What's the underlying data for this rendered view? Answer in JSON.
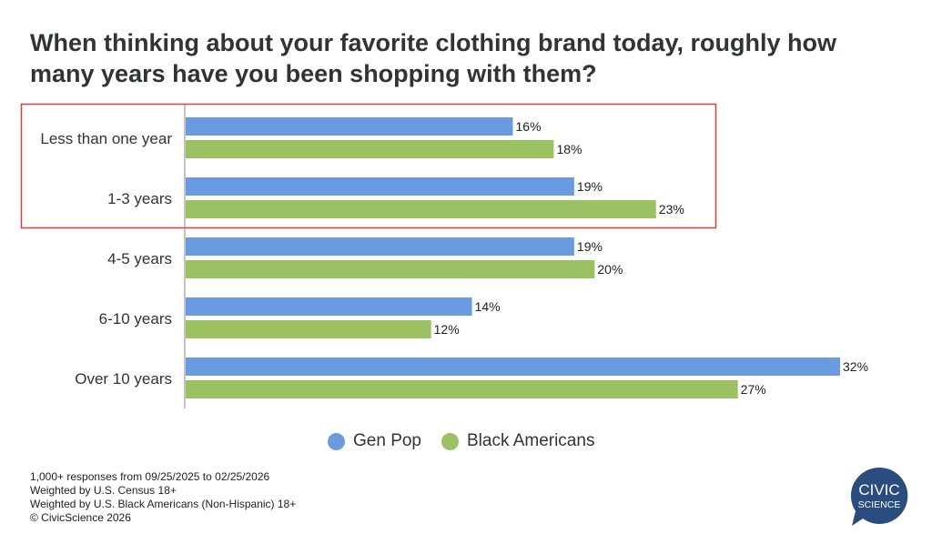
{
  "chart_data": {
    "type": "bar",
    "orientation": "horizontal",
    "title": "When thinking about your favorite clothing brand today, roughly how many years have you been shopping with them?",
    "categories": [
      "Less than one year",
      "1-3 years",
      "4-5 years",
      "6-10 years",
      "Over 10 years"
    ],
    "series": [
      {
        "name": "Gen Pop",
        "color": "#6a9ae0",
        "values": [
          16,
          19,
          19,
          14,
          32
        ]
      },
      {
        "name": "Black Americans",
        "color": "#9bc163",
        "values": [
          18,
          23,
          20,
          12,
          27
        ]
      }
    ],
    "value_suffix": "%",
    "xlim": [
      0,
      32
    ],
    "legend": "bottom-center",
    "highlight": {
      "categories": [
        "Less than one year",
        "1-3 years"
      ],
      "color": "#e03c3c"
    }
  },
  "notes": [
    "1,000+ responses from 09/25/2025 to 02/25/2026",
    "Weighted by U.S. Census 18+",
    "Weighted by U.S. Black Americans (Non-Hispanic) 18+",
    "© CivicScience 2026"
  ],
  "logo": {
    "line1": "CIVIC",
    "line2": "SCIENCE",
    "color": "#2b4c7e"
  }
}
